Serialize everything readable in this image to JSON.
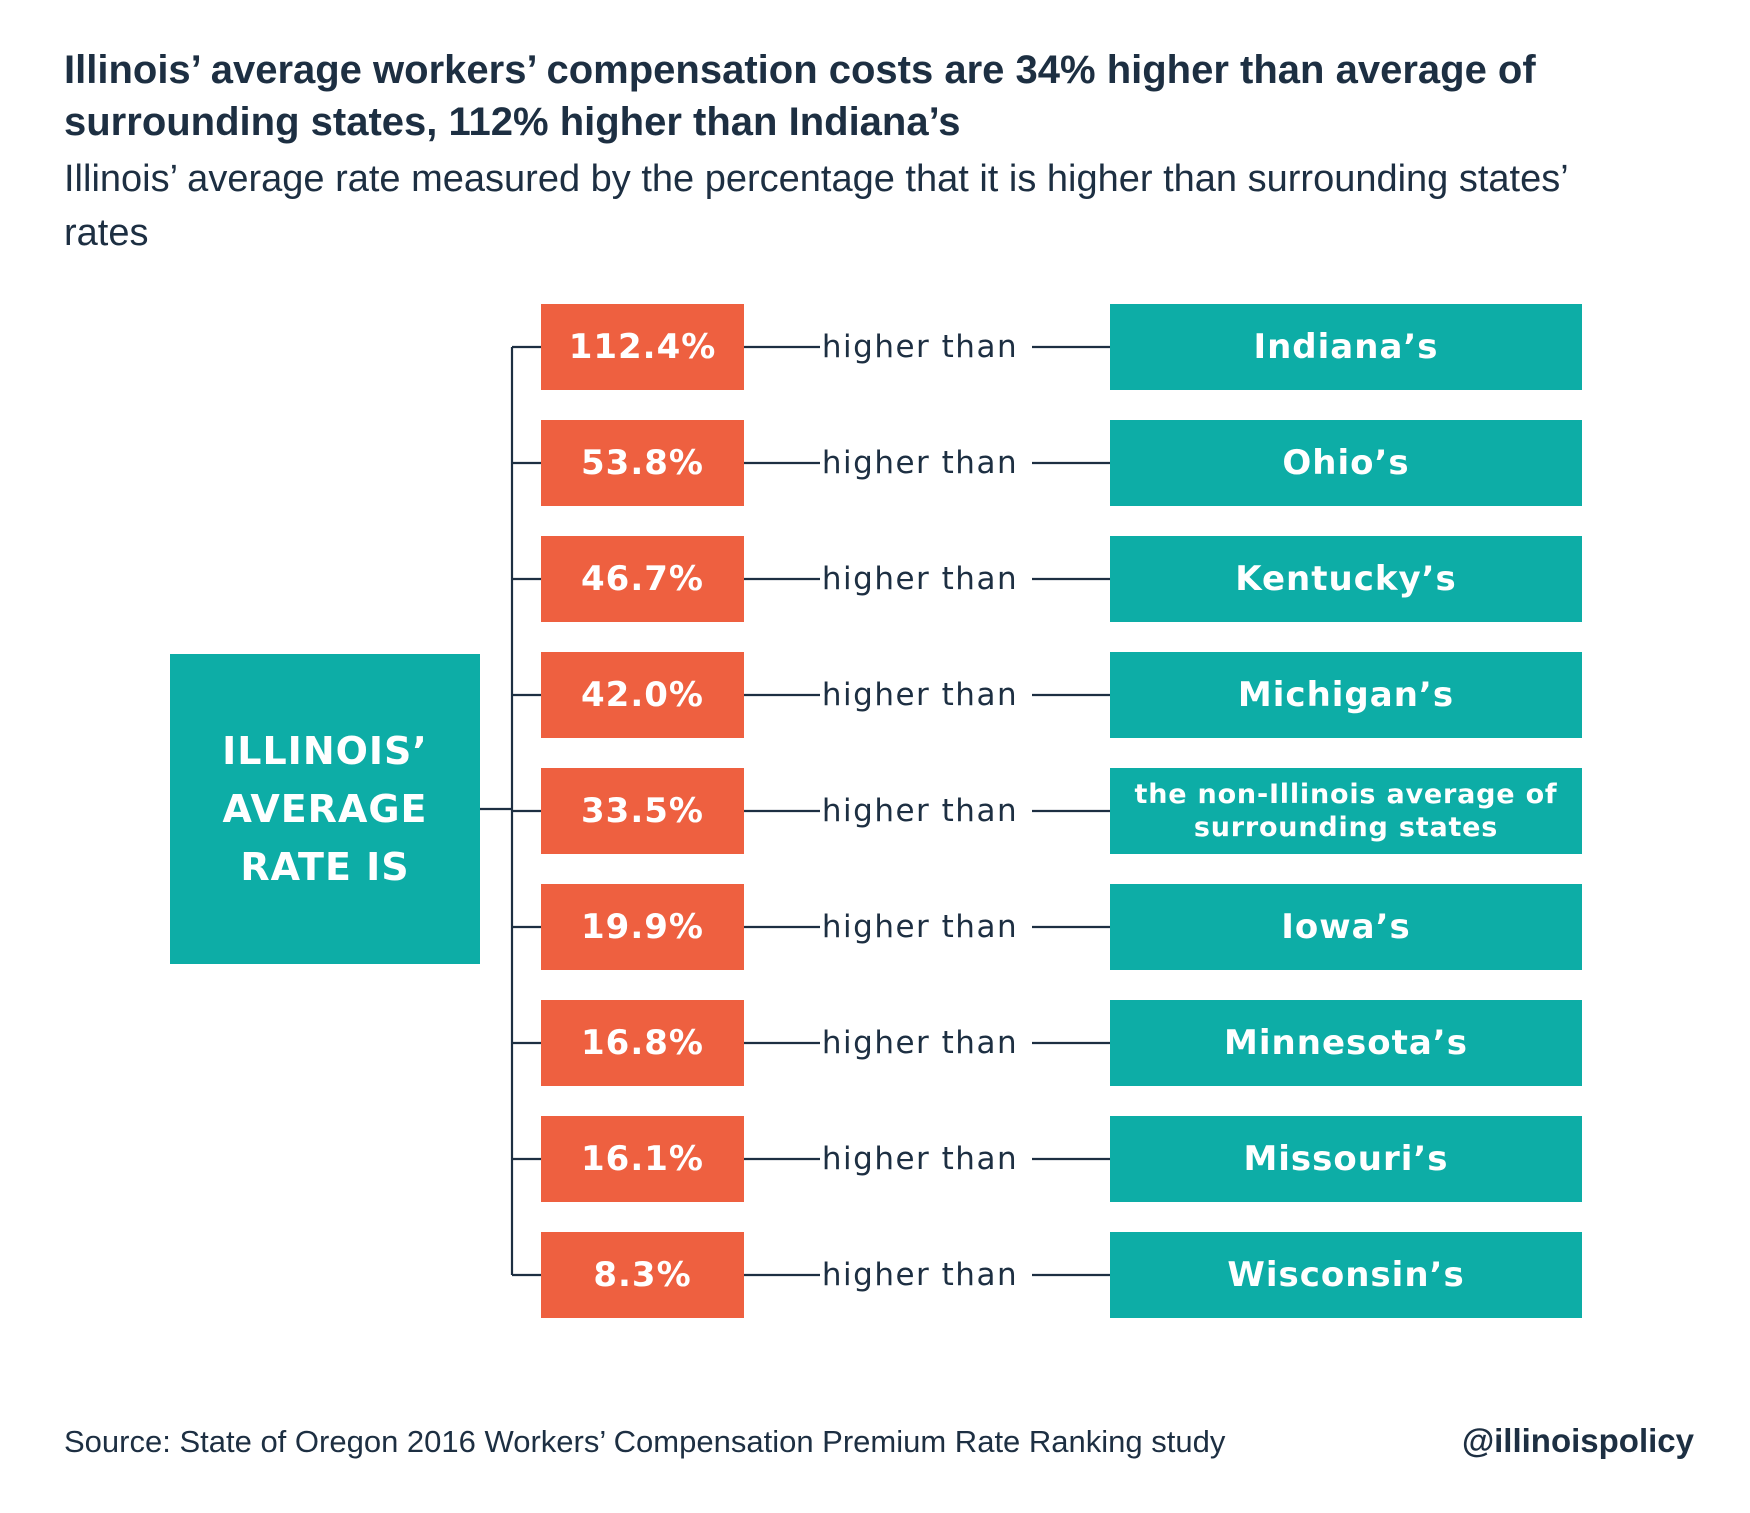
{
  "title": "Illinois’ average workers’ compensation costs are 34% higher than average of surrounding states, 112% higher than Indiana’s",
  "subtitle": "Illinois’ average rate measured by the percentage that it is higher than surrounding states’ rates",
  "center_label": "ILLINOIS’ AVERAGE RATE IS",
  "connector_label": "higher than",
  "colors": {
    "percent_box": "#ee6040",
    "state_box": "#0dada6",
    "text": "#1d2f42"
  },
  "rows": [
    {
      "percent": "112.4%",
      "comparison": "Indiana’s"
    },
    {
      "percent": "53.8%",
      "comparison": "Ohio’s"
    },
    {
      "percent": "46.7%",
      "comparison": "Kentucky’s"
    },
    {
      "percent": "42.0%",
      "comparison": "Michigan’s"
    },
    {
      "percent": "33.5%",
      "comparison": "the non-Illinois average of surrounding states"
    },
    {
      "percent": "19.9%",
      "comparison": "Iowa’s"
    },
    {
      "percent": "16.8%",
      "comparison": "Minnesota’s"
    },
    {
      "percent": "16.1%",
      "comparison": "Missouri’s"
    },
    {
      "percent": "8.3%",
      "comparison": "Wisconsin’s"
    }
  ],
  "source": "Source: State of Oregon 2016 Workers’ Compensation Premium Rate Ranking study",
  "handle": "@illinoispolicy"
}
